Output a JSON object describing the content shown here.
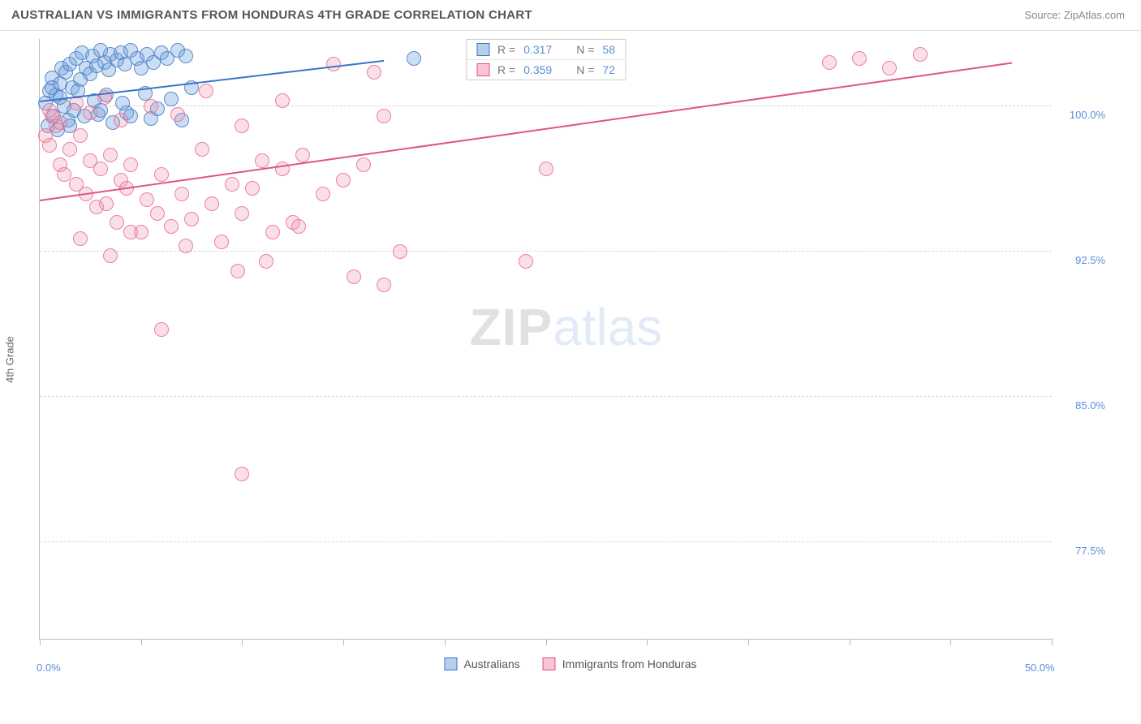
{
  "header": {
    "title": "AUSTRALIAN VS IMMIGRANTS FROM HONDURAS 4TH GRADE CORRELATION CHART",
    "source_prefix": "Source: ",
    "source_name": "ZipAtlas.com"
  },
  "chart": {
    "type": "scatter",
    "ylabel": "4th Grade",
    "background_color": "#ffffff",
    "grid_color": "#d8d8d8",
    "axis_color": "#bbbbbb",
    "label_color": "#5b8fd9",
    "xlim": [
      0,
      50
    ],
    "ylim": [
      72.5,
      103.5
    ],
    "xticks": [
      0,
      5,
      10,
      15,
      20,
      25,
      30,
      35,
      40,
      45,
      50
    ],
    "xlabels": [
      {
        "x": 0,
        "text": "0.0%"
      },
      {
        "x": 50,
        "text": "50.0%"
      }
    ],
    "yticks": [
      {
        "y": 77.5,
        "text": "77.5%"
      },
      {
        "y": 85.0,
        "text": "85.0%"
      },
      {
        "y": 92.5,
        "text": "92.5%"
      },
      {
        "y": 100.0,
        "text": "100.0%"
      }
    ],
    "marker_size": 18,
    "series": [
      {
        "key": "a",
        "name": "Australians",
        "fill": "rgba(108,160,220,0.35)",
        "stroke": "#3a76c8",
        "r_value": "0.317",
        "n_value": "58",
        "trend": {
          "x1": 0,
          "y1": 100.3,
          "x2": 17,
          "y2": 102.4
        },
        "points": [
          [
            0.3,
            100.2
          ],
          [
            0.5,
            100.8
          ],
          [
            0.6,
            101.5
          ],
          [
            0.8,
            100.6
          ],
          [
            1.0,
            101.2
          ],
          [
            1.1,
            102.0
          ],
          [
            1.2,
            100.0
          ],
          [
            1.3,
            101.8
          ],
          [
            1.5,
            102.2
          ],
          [
            1.6,
            101.0
          ],
          [
            1.8,
            102.5
          ],
          [
            2.0,
            101.4
          ],
          [
            2.1,
            102.8
          ],
          [
            2.3,
            102.0
          ],
          [
            2.5,
            101.7
          ],
          [
            2.6,
            102.6
          ],
          [
            2.8,
            102.1
          ],
          [
            3.0,
            102.9
          ],
          [
            3.2,
            102.3
          ],
          [
            3.4,
            101.9
          ],
          [
            3.5,
            102.7
          ],
          [
            3.8,
            102.4
          ],
          [
            4.0,
            102.8
          ],
          [
            4.2,
            102.2
          ],
          [
            4.5,
            102.9
          ],
          [
            4.8,
            102.5
          ],
          [
            5.0,
            102.0
          ],
          [
            5.3,
            102.7
          ],
          [
            5.6,
            102.3
          ],
          [
            6.0,
            102.8
          ],
          [
            6.3,
            102.5
          ],
          [
            6.8,
            102.9
          ],
          [
            7.2,
            102.6
          ],
          [
            0.4,
            99.0
          ],
          [
            0.7,
            99.5
          ],
          [
            0.9,
            98.8
          ],
          [
            1.4,
            99.3
          ],
          [
            1.7,
            99.8
          ],
          [
            2.2,
            99.5
          ],
          [
            2.9,
            99.6
          ],
          [
            3.6,
            99.2
          ],
          [
            4.3,
            99.7
          ],
          [
            5.5,
            99.4
          ],
          [
            1.0,
            100.5
          ],
          [
            1.9,
            100.8
          ],
          [
            2.7,
            100.3
          ],
          [
            3.3,
            100.6
          ],
          [
            4.1,
            100.2
          ],
          [
            5.2,
            100.7
          ],
          [
            6.5,
            100.4
          ],
          [
            7.5,
            101.0
          ],
          [
            0.6,
            101.0
          ],
          [
            1.5,
            99.0
          ],
          [
            3.0,
            99.8
          ],
          [
            4.5,
            99.5
          ],
          [
            5.8,
            99.9
          ],
          [
            7.0,
            99.3
          ],
          [
            18.5,
            102.5
          ]
        ]
      },
      {
        "key": "b",
        "name": "Immigrants from Honduras",
        "fill": "rgba(240,140,170,0.28)",
        "stroke": "#e0557f",
        "r_value": "0.359",
        "n_value": "72",
        "trend": {
          "x1": 0,
          "y1": 95.2,
          "x2": 48,
          "y2": 102.3
        },
        "points": [
          [
            0.3,
            98.5
          ],
          [
            0.5,
            98.0
          ],
          [
            0.6,
            99.5
          ],
          [
            0.8,
            99.0
          ],
          [
            1.0,
            97.0
          ],
          [
            1.2,
            96.5
          ],
          [
            1.5,
            97.8
          ],
          [
            1.8,
            96.0
          ],
          [
            2.0,
            98.5
          ],
          [
            2.3,
            95.5
          ],
          [
            2.5,
            97.2
          ],
          [
            2.8,
            94.8
          ],
          [
            3.0,
            96.8
          ],
          [
            3.3,
            95.0
          ],
          [
            3.5,
            97.5
          ],
          [
            3.8,
            94.0
          ],
          [
            4.0,
            96.2
          ],
          [
            4.3,
            95.8
          ],
          [
            4.5,
            97.0
          ],
          [
            5.0,
            93.5
          ],
          [
            5.3,
            95.2
          ],
          [
            5.8,
            94.5
          ],
          [
            6.0,
            96.5
          ],
          [
            6.5,
            93.8
          ],
          [
            7.0,
            95.5
          ],
          [
            7.5,
            94.2
          ],
          [
            8.0,
            97.8
          ],
          [
            8.5,
            95.0
          ],
          [
            9.0,
            93.0
          ],
          [
            9.5,
            96.0
          ],
          [
            10.0,
            94.5
          ],
          [
            10.5,
            95.8
          ],
          [
            11.0,
            97.2
          ],
          [
            11.5,
            93.5
          ],
          [
            12.0,
            96.8
          ],
          [
            12.5,
            94.0
          ],
          [
            13.0,
            97.5
          ],
          [
            14.0,
            95.5
          ],
          [
            15.0,
            96.2
          ],
          [
            16.0,
            97.0
          ],
          [
            17.0,
            99.5
          ],
          [
            25.0,
            96.8
          ],
          [
            0.5,
            99.8
          ],
          [
            1.0,
            99.2
          ],
          [
            1.8,
            100.2
          ],
          [
            2.5,
            99.7
          ],
          [
            3.2,
            100.5
          ],
          [
            4.0,
            99.3
          ],
          [
            5.5,
            100.0
          ],
          [
            6.8,
            99.6
          ],
          [
            8.2,
            100.8
          ],
          [
            10.0,
            99.0
          ],
          [
            12.0,
            100.3
          ],
          [
            14.5,
            102.2
          ],
          [
            16.5,
            101.8
          ],
          [
            2.0,
            93.2
          ],
          [
            4.5,
            93.5
          ],
          [
            6.0,
            88.5
          ],
          [
            3.5,
            92.3
          ],
          [
            7.2,
            92.8
          ],
          [
            9.8,
            91.5
          ],
          [
            11.2,
            92.0
          ],
          [
            12.8,
            93.8
          ],
          [
            15.5,
            91.2
          ],
          [
            17.0,
            90.8
          ],
          [
            17.8,
            92.5
          ],
          [
            24.0,
            92.0
          ],
          [
            10.0,
            81.0
          ],
          [
            39.0,
            102.3
          ],
          [
            40.5,
            102.5
          ],
          [
            42.0,
            102.0
          ],
          [
            43.5,
            102.7
          ]
        ]
      }
    ],
    "stats_labels": {
      "r": "R =",
      "n": "N ="
    },
    "watermark": {
      "part1": "ZIP",
      "part2": "atlas"
    }
  }
}
